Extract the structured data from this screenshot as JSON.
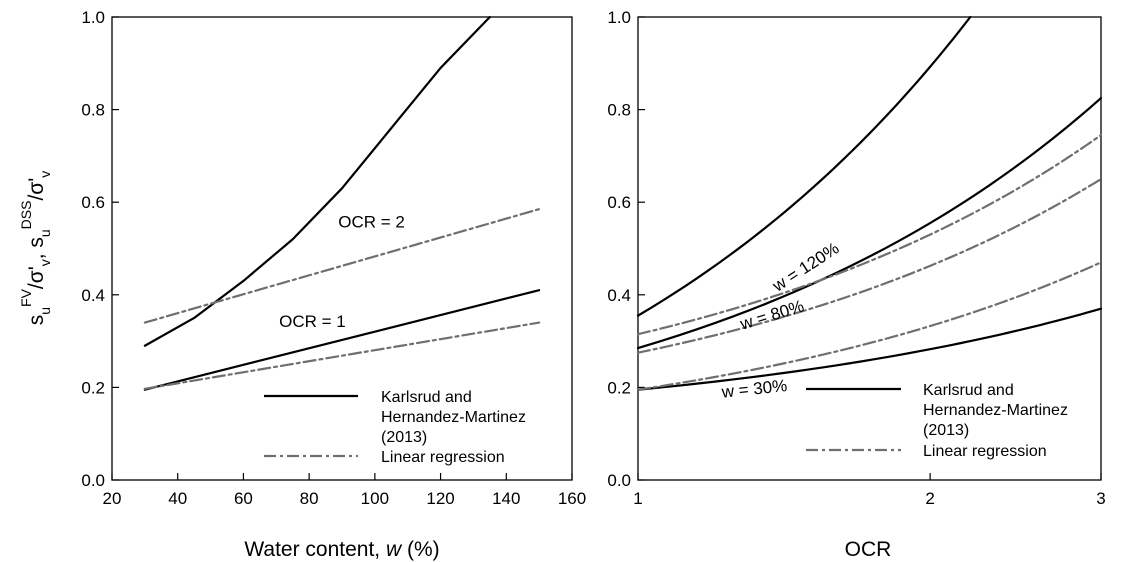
{
  "chart_data": [
    {
      "type": "line",
      "xlabel_main": "Water content, ",
      "xlabel_var": "w",
      "xlabel_unit": " (%)",
      "ylabel": "s_u^FV/σ'_v, s_u^DSS/σ'_v",
      "ylabel_parts": [
        "s",
        "u",
        "FV",
        "/σ'",
        "v",
        ", s",
        "u",
        "DSS",
        "/σ'",
        "v"
      ],
      "xlim": [
        20,
        160
      ],
      "ylim": [
        0.0,
        1.0
      ],
      "xticks": [
        "20",
        "40",
        "60",
        "80",
        "100",
        "120",
        "140",
        "160"
      ],
      "yticks": [
        "0.0",
        "0.2",
        "0.4",
        "0.6",
        "0.8",
        "1.0"
      ],
      "grid": false,
      "legend": {
        "placement": "bottom-right",
        "entries": [
          {
            "label_lines": [
              "Karlsrud and",
              "Hernandez-Martinez",
              "(2013)"
            ],
            "style": "solid"
          },
          {
            "label_lines": [
              "Linear regression"
            ],
            "style": "dash-dot"
          }
        ]
      },
      "series": [
        {
          "style": "solid",
          "color": "#000000",
          "points": [
            [
              30,
              0.195
            ],
            [
              150,
              0.41
            ]
          ]
        },
        {
          "style": "dash-dot",
          "color": "#6f6f6f",
          "points": [
            [
              30,
              0.197
            ],
            [
              150,
              0.34
            ]
          ]
        },
        {
          "style": "solid",
          "color": "#000000",
          "points": [
            [
              30,
              0.29
            ],
            [
              45,
              0.35
            ],
            [
              60,
              0.43
            ],
            [
              75,
              0.52
            ],
            [
              90,
              0.63
            ],
            [
              105,
              0.76
            ],
            [
              120,
              0.89
            ],
            [
              135,
              1.0
            ]
          ]
        },
        {
          "style": "dash-dot",
          "color": "#6f6f6f",
          "points": [
            [
              30,
              0.34
            ],
            [
              150,
              0.585
            ]
          ]
        }
      ],
      "annotations": [
        {
          "text": "OCR = 2",
          "x": 99,
          "y": 0.545
        },
        {
          "text": "OCR = 1",
          "x": 81,
          "y": 0.33
        }
      ]
    },
    {
      "type": "line",
      "xlabel": "OCR",
      "xscale": "log",
      "xlim": [
        1,
        3
      ],
      "ylim": [
        0.0,
        1.0
      ],
      "xticks": [
        "1",
        "2",
        "3"
      ],
      "yticks": [
        "0.0",
        "0.2",
        "0.4",
        "0.6",
        "0.8",
        "1.0"
      ],
      "grid": false,
      "legend": {
        "placement": "bottom-right",
        "entries": [
          {
            "label_lines": [
              "Karlsrud and",
              "Hernandez-Martinez",
              "(2013)"
            ],
            "style": "solid"
          },
          {
            "label_lines": [
              "Linear regression"
            ],
            "style": "dash-dot"
          }
        ]
      },
      "series": [
        {
          "style": "solid",
          "color": "#000000",
          "points": [
            [
              1,
              0.195
            ],
            [
              3,
              0.37
            ]
          ]
        },
        {
          "style": "dash-dot",
          "color": "#6f6f6f",
          "points": [
            [
              1,
              0.195
            ],
            [
              3,
              0.47
            ]
          ]
        },
        {
          "style": "solid",
          "color": "#000000",
          "points": [
            [
              1,
              0.285
            ],
            [
              3,
              0.825
            ]
          ]
        },
        {
          "style": "dash-dot",
          "color": "#6f6f6f",
          "points": [
            [
              1,
              0.275
            ],
            [
              3,
              0.65
            ]
          ]
        },
        {
          "style": "dash-dot",
          "color": "#6f6f6f",
          "points": [
            [
              1,
              0.315
            ],
            [
              3,
              0.745
            ]
          ]
        },
        {
          "style": "solid",
          "color": "#000000",
          "points": [
            [
              1,
              0.355
            ],
            [
              2.2,
              1.0
            ]
          ]
        }
      ],
      "annotations": [
        {
          "text": "w = 120%",
          "x": 1.5,
          "y": 0.45,
          "rotate": -33
        },
        {
          "text": "w = 80%",
          "x": 1.38,
          "y": 0.345,
          "rotate": -17
        },
        {
          "text": "w = 30%",
          "x": 1.32,
          "y": 0.185,
          "rotate": -6
        }
      ]
    }
  ]
}
